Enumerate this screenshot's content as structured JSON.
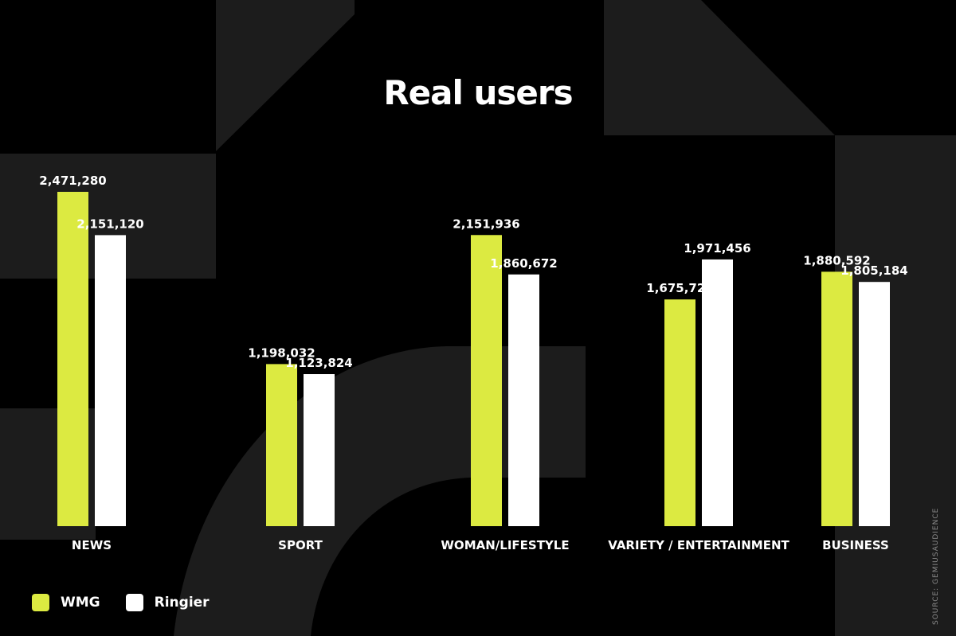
{
  "title": "Real users",
  "colors": {
    "wmg": "#dcea41",
    "ringier": "#ffffff",
    "background": "#000000",
    "shape": "#1c1c1c"
  },
  "legend": [
    {
      "label": "WMG",
      "color": "#dcea41"
    },
    {
      "label": "Ringier",
      "color": "#ffffff"
    }
  ],
  "source": "SOURCE: GEMIUSAUDIENCE",
  "chart_data": {
    "type": "bar",
    "title": "Real users",
    "categories": [
      "NEWS",
      "SPORT",
      "WOMAN/LIFESTYLE",
      "VARIETY / ENTERTAINMENT",
      "BUSINESS"
    ],
    "series": [
      {
        "name": "WMG",
        "color": "#dcea41",
        "values": [
          2471280,
          1198032,
          2151936,
          1675728,
          1880592
        ],
        "labels": [
          "2,471,280",
          "1,198,032",
          "2,151,936",
          "1,675,728",
          "1,880,592"
        ]
      },
      {
        "name": "Ringier",
        "color": "#ffffff",
        "values": [
          2151120,
          1123824,
          1860672,
          1971456,
          1805184
        ],
        "labels": [
          "2,151,120",
          "1,123,824",
          "1,860,672",
          "1,971,456",
          "1,805,184"
        ]
      }
    ],
    "ylim": [
      0,
      2471280
    ],
    "grid": false,
    "legend_position": "bottom-left"
  }
}
